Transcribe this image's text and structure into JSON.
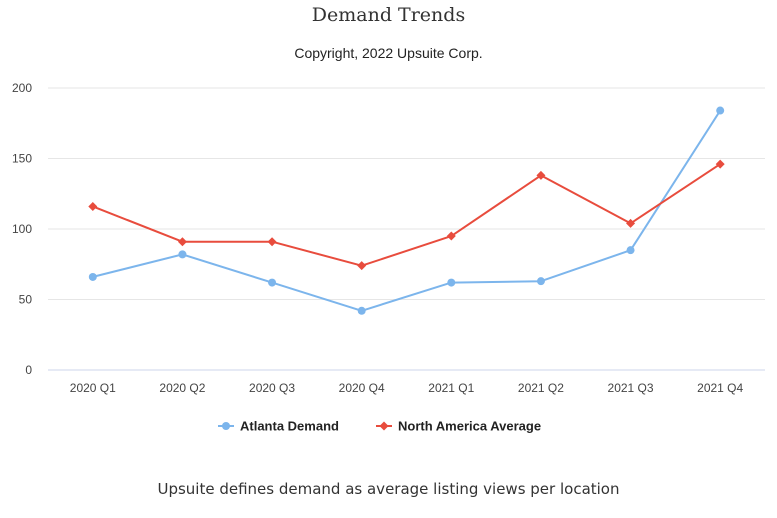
{
  "chart_data": {
    "type": "line",
    "title": "Demand Trends",
    "subtitle": "Copyright, 2022 Upsuite Corp.",
    "categories": [
      "2020 Q1",
      "2020 Q2",
      "2020 Q3",
      "2020 Q4",
      "2021 Q1",
      "2021 Q2",
      "2021 Q3",
      "2021 Q4"
    ],
    "series": [
      {
        "name": "Atlanta Demand",
        "color": "#7cb5ec",
        "marker": "circle",
        "values": [
          66,
          82,
          62,
          42,
          62,
          63,
          85,
          184
        ]
      },
      {
        "name": "North America Average",
        "color": "#e84c3d",
        "marker": "diamond",
        "values": [
          116,
          91,
          91,
          74,
          95,
          138,
          104,
          146
        ]
      }
    ],
    "yticks": [
      0,
      50,
      100,
      150,
      200
    ],
    "ylim": [
      0,
      200
    ],
    "xlabel": "",
    "ylabel": "",
    "grid": true,
    "legend_position": "bottom-center",
    "footer": "Upsuite defines demand as average listing views per location"
  }
}
